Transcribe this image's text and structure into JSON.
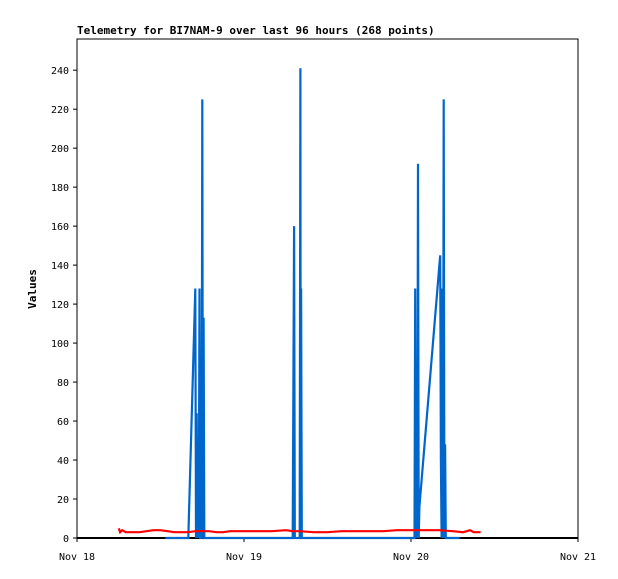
{
  "chart_data": {
    "type": "line",
    "title": "Telemetry for BI7NAM-9 over last 96 hours (268 points)",
    "xlabel": "",
    "ylabel": "Values",
    "x_unit": "hours since Nov 18 00:00",
    "xlim": [
      0,
      72
    ],
    "ylim": [
      0,
      256
    ],
    "x_ticks": [
      {
        "x": 0,
        "label": "Nov 18"
      },
      {
        "x": 24,
        "label": "Nov 19"
      },
      {
        "x": 48,
        "label": "Nov 20"
      },
      {
        "x": 72,
        "label": "Nov 21"
      }
    ],
    "y_ticks": [
      0,
      20,
      40,
      60,
      80,
      100,
      120,
      140,
      160,
      180,
      200,
      220,
      240
    ],
    "grid": false,
    "legend": "none",
    "series": [
      {
        "color": "#0066cc",
        "points": [
          [
            12.7,
            0
          ],
          [
            15.0,
            0
          ],
          [
            16.0,
            0
          ],
          [
            17.0,
            128
          ],
          [
            17.1,
            0
          ],
          [
            17.2,
            64
          ],
          [
            17.3,
            0
          ],
          [
            17.4,
            48
          ],
          [
            17.5,
            0
          ],
          [
            17.6,
            128
          ],
          [
            17.7,
            0
          ],
          [
            17.9,
            0
          ],
          [
            18.0,
            225
          ],
          [
            18.1,
            0
          ],
          [
            18.2,
            113
          ],
          [
            18.3,
            0
          ],
          [
            31.0,
            0
          ],
          [
            31.2,
            160
          ],
          [
            31.3,
            0
          ],
          [
            32.0,
            0
          ],
          [
            32.1,
            241
          ],
          [
            32.15,
            0
          ],
          [
            32.2,
            128
          ],
          [
            32.3,
            0
          ],
          [
            48.5,
            0
          ],
          [
            48.6,
            128
          ],
          [
            48.7,
            0
          ],
          [
            48.8,
            16
          ],
          [
            48.9,
            0
          ],
          [
            49.0,
            192
          ],
          [
            49.1,
            0
          ],
          [
            49.2,
            16
          ],
          [
            52.2,
            145
          ],
          [
            52.3,
            40
          ],
          [
            52.4,
            0
          ],
          [
            52.5,
            128
          ],
          [
            52.6,
            0
          ],
          [
            52.7,
            225
          ],
          [
            52.8,
            0
          ],
          [
            52.9,
            48
          ],
          [
            53.0,
            0
          ],
          [
            55.0,
            0
          ]
        ]
      },
      {
        "color": "#ff0000",
        "points": [
          [
            6.0,
            5
          ],
          [
            6.2,
            3
          ],
          [
            6.5,
            4
          ],
          [
            7.0,
            3
          ],
          [
            9.0,
            3
          ],
          [
            10.0,
            3.5
          ],
          [
            11.0,
            4
          ],
          [
            12.0,
            4
          ],
          [
            13.0,
            3.5
          ],
          [
            14.0,
            3
          ],
          [
            15.0,
            3
          ],
          [
            16.0,
            3
          ],
          [
            17.0,
            3.5
          ],
          [
            18.0,
            3.5
          ],
          [
            19.0,
            3.5
          ],
          [
            20.0,
            3
          ],
          [
            21.0,
            3
          ],
          [
            22.0,
            3.5
          ],
          [
            24.0,
            3.5
          ],
          [
            26.0,
            3.5
          ],
          [
            28.0,
            3.5
          ],
          [
            30.0,
            4
          ],
          [
            31.0,
            3.5
          ],
          [
            32.0,
            3.5
          ],
          [
            34.0,
            3
          ],
          [
            36.0,
            3
          ],
          [
            38.0,
            3.5
          ],
          [
            40.0,
            3.5
          ],
          [
            42.0,
            3.5
          ],
          [
            44.0,
            3.5
          ],
          [
            46.0,
            4
          ],
          [
            48.0,
            4
          ],
          [
            50.0,
            4
          ],
          [
            52.0,
            4
          ],
          [
            54.0,
            3.5
          ],
          [
            55.5,
            3
          ],
          [
            56.5,
            4
          ],
          [
            57.0,
            3
          ],
          [
            58.0,
            3
          ]
        ]
      }
    ]
  }
}
